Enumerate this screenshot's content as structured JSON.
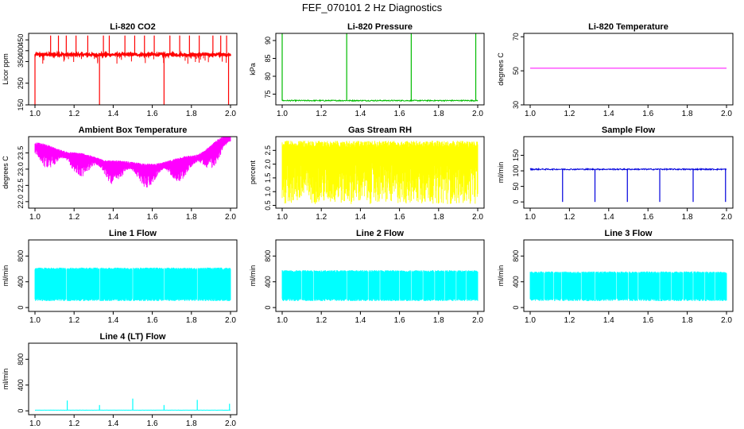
{
  "figure": {
    "title": "FEF_070101  2 Hz Diagnostics"
  },
  "chart_data": [
    {
      "id": "co2",
      "type": "line",
      "title": "Li-820 CO2",
      "xlabel": "",
      "ylabel": "Licor ppm",
      "xlim": [
        1.0,
        2.0
      ],
      "ylim": [
        150,
        480
      ],
      "xticks": [
        1.0,
        1.2,
        1.4,
        1.6,
        1.8,
        2.0
      ],
      "yticks": [
        150,
        250,
        350,
        400,
        450
      ],
      "ytick_labels": [
        "150",
        "250",
        "350",
        "400",
        "450"
      ],
      "color": "#ff0000",
      "series": [
        {
          "name": "CO2",
          "baseline": 382,
          "noise": 6,
          "min": 150,
          "max": 470,
          "up_spikes": [
            1.08,
            1.12,
            1.16,
            1.21,
            1.27,
            1.35,
            1.38,
            1.46,
            1.51,
            1.56,
            1.61,
            1.69,
            1.74,
            1.79,
            1.84,
            1.91,
            1.95,
            1.98
          ],
          "down_spikes": [
            1.0,
            1.33,
            1.66,
            1.99
          ]
        }
      ]
    },
    {
      "id": "pressure",
      "type": "line",
      "title": "Li-820 Pressure",
      "xlabel": "",
      "ylabel": "kPa",
      "xlim": [
        1.0,
        2.0
      ],
      "ylim": [
        72,
        92
      ],
      "xticks": [
        1.0,
        1.2,
        1.4,
        1.6,
        1.8,
        2.0
      ],
      "yticks": [
        75,
        80,
        85,
        90
      ],
      "ytick_labels": [
        "75",
        "80",
        "85",
        "90"
      ],
      "color": "#00bb00",
      "series": [
        {
          "name": "Pressure",
          "baseline": 73.2,
          "noise": 0.15,
          "min": 72,
          "max": 92,
          "up_spikes": [
            1.0,
            1.33,
            1.66,
            1.99
          ],
          "down_spikes": []
        }
      ]
    },
    {
      "id": "temperature",
      "type": "line",
      "title": "Li-820 Temperature",
      "xlabel": "",
      "ylabel": "degrees C",
      "xlim": [
        1.0,
        2.0
      ],
      "ylim": [
        30,
        72
      ],
      "xticks": [
        1.0,
        1.2,
        1.4,
        1.6,
        1.8,
        2.0
      ],
      "yticks": [
        30,
        50,
        70
      ],
      "ytick_labels": [
        "30",
        "50",
        "70"
      ],
      "color": "#ff00ff",
      "series": [
        {
          "name": "Temperature",
          "baseline": 51.5,
          "noise": 0,
          "min": 30,
          "max": 72,
          "up_spikes": [],
          "down_spikes": []
        }
      ]
    },
    {
      "id": "ambient",
      "type": "line",
      "title": "Ambient Box Temperature",
      "xlabel": "",
      "ylabel": "degrees C",
      "xlim": [
        1.0,
        2.0
      ],
      "ylim": [
        21.8,
        24.0
      ],
      "xticks": [
        1.0,
        1.2,
        1.4,
        1.6,
        1.8,
        2.0
      ],
      "yticks": [
        22.0,
        22.5,
        23.0,
        23.5
      ],
      "ytick_labels": [
        "22.0",
        "22.5",
        "23.0",
        "23.5"
      ],
      "color": "#ff00ff",
      "series": [
        {
          "name": "Ambient",
          "curve_x": [
            1.0,
            1.2,
            1.4,
            1.6,
            1.8,
            2.0
          ],
          "curve_y": [
            23.7,
            23.4,
            23.15,
            23.05,
            23.3,
            23.95
          ],
          "band_high": 0.12,
          "band_low": 0.9,
          "min": 21.8,
          "max": 24.0
        }
      ]
    },
    {
      "id": "rh",
      "type": "line",
      "title": "Gas Stream RH",
      "xlabel": "",
      "ylabel": "percent",
      "xlim": [
        1.0,
        2.0
      ],
      "ylim": [
        0.4,
        3.0
      ],
      "xticks": [
        1.0,
        1.2,
        1.4,
        1.6,
        1.8,
        2.0
      ],
      "yticks": [
        0.5,
        1.0,
        1.5,
        2.0,
        2.5
      ],
      "ytick_labels": [
        "0.5",
        "1.0",
        "1.5",
        "2.0",
        "2.5"
      ],
      "color": "#ffff00",
      "series": [
        {
          "name": "RH",
          "low": 0.55,
          "high": 2.85,
          "min": 0.4,
          "max": 3.0
        }
      ]
    },
    {
      "id": "sample_flow",
      "type": "line",
      "title": "Sample Flow",
      "xlabel": "",
      "ylabel": "ml/min",
      "xlim": [
        1.0,
        2.0
      ],
      "ylim": [
        -20,
        210
      ],
      "xticks": [
        1.0,
        1.2,
        1.4,
        1.6,
        1.8,
        2.0
      ],
      "yticks": [
        0,
        50,
        100,
        150
      ],
      "ytick_labels": [
        "0",
        "50",
        "100",
        "150"
      ],
      "color": "#0000dd",
      "series": [
        {
          "name": "Sample Flow",
          "baseline": 105,
          "noise": 2,
          "min": -20,
          "max": 210,
          "up_spikes": [],
          "down_spikes": [
            1.165,
            1.33,
            1.495,
            1.66,
            1.83,
            1.995
          ],
          "down_to": 0
        }
      ]
    },
    {
      "id": "line1",
      "type": "line",
      "title": "Line 1 Flow",
      "xlabel": "",
      "ylabel": "ml/min",
      "xlim": [
        1.0,
        2.0
      ],
      "ylim": [
        -60,
        1050
      ],
      "xticks": [
        1.0,
        1.2,
        1.4,
        1.6,
        1.8,
        2.0
      ],
      "yticks": [
        0,
        400,
        800
      ],
      "ytick_labels": [
        "0",
        "400",
        "800"
      ],
      "color": "#00ffff",
      "series": [
        {
          "name": "Line 1",
          "low": 100,
          "high": 620,
          "min": -60,
          "max": 1050,
          "gaps": [
            1.16,
            1.33,
            1.5,
            1.66,
            1.83
          ]
        }
      ]
    },
    {
      "id": "line2",
      "type": "line",
      "title": "Line 2 Flow",
      "xlabel": "",
      "ylabel": "ml/min",
      "xlim": [
        1.0,
        2.0
      ],
      "ylim": [
        -60,
        1050
      ],
      "xticks": [
        1.0,
        1.2,
        1.4,
        1.6,
        1.8,
        2.0
      ],
      "yticks": [
        0,
        400,
        800
      ],
      "ytick_labels": [
        "0",
        "400",
        "800"
      ],
      "color": "#00ffff",
      "series": [
        {
          "name": "Line 2",
          "low": 100,
          "high": 580,
          "min": -60,
          "max": 1050,
          "gaps": [
            1.1,
            1.16,
            1.33,
            1.44,
            1.5,
            1.6,
            1.66,
            1.72,
            1.78,
            1.83,
            1.89,
            1.94
          ]
        }
      ]
    },
    {
      "id": "line3",
      "type": "line",
      "title": "Line 3 Flow",
      "xlabel": "",
      "ylabel": "ml/min",
      "xlim": [
        1.0,
        2.0
      ],
      "ylim": [
        -60,
        1050
      ],
      "xticks": [
        1.0,
        1.2,
        1.4,
        1.6,
        1.8,
        2.0
      ],
      "yticks": [
        0,
        400,
        800
      ],
      "ytick_labels": [
        "0",
        "400",
        "800"
      ],
      "color": "#00ffff",
      "series": [
        {
          "name": "Line 3",
          "low": 100,
          "high": 560,
          "min": -60,
          "max": 1050,
          "gaps": [
            1.07,
            1.12,
            1.16,
            1.26,
            1.33,
            1.44,
            1.5,
            1.55,
            1.66,
            1.72,
            1.78,
            1.83,
            1.89,
            1.94
          ]
        }
      ]
    },
    {
      "id": "line4",
      "type": "line",
      "title": "Line 4 (LT) Flow",
      "xlabel": "",
      "ylabel": "ml/min",
      "xlim": [
        1.0,
        2.0
      ],
      "ylim": [
        -60,
        1050
      ],
      "xticks": [
        1.0,
        1.2,
        1.4,
        1.6,
        1.8,
        2.0
      ],
      "yticks": [
        0,
        400,
        800
      ],
      "ytick_labels": [
        "0",
        "400",
        "800"
      ],
      "color": "#00ffff",
      "series": [
        {
          "name": "Line 4",
          "baseline": 10,
          "noise": 1,
          "min": -60,
          "max": 1050,
          "up_spikes": [
            1.165,
            1.33,
            1.5,
            1.66,
            1.83,
            1.995
          ],
          "spike_heights": [
            160,
            90,
            190,
            90,
            170,
            110
          ],
          "down_spikes": []
        }
      ]
    }
  ]
}
